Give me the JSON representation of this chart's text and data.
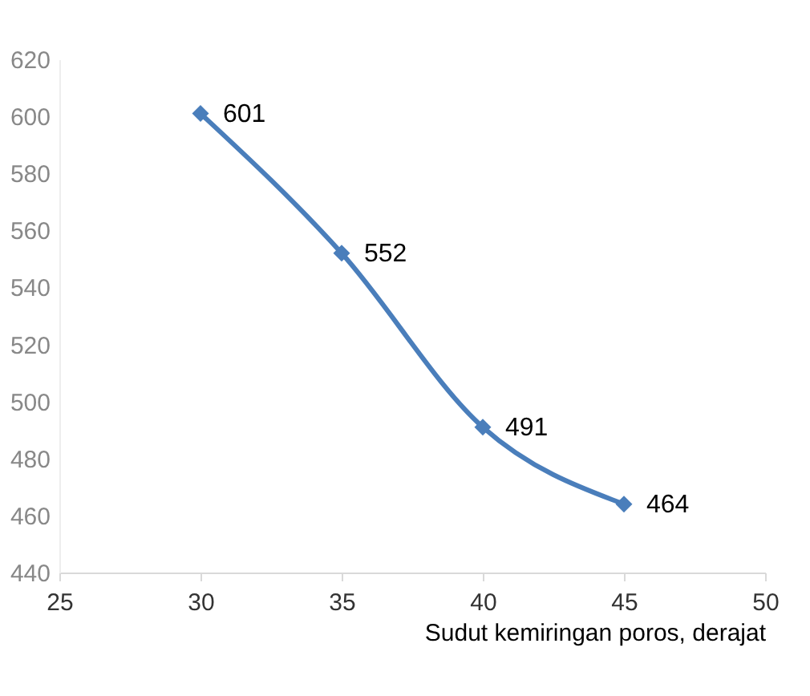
{
  "chart_data": {
    "type": "line",
    "xlabel": "Sudut kemiringan poros, derajat",
    "x": [
      30,
      35,
      40,
      45
    ],
    "series": [
      {
        "color": "#4a7ebb",
        "values": [
          601,
          552,
          491,
          464
        ]
      }
    ],
    "xlim": [
      25,
      50
    ],
    "xticks": [
      25,
      30,
      35,
      40,
      45,
      50
    ],
    "ylim": [
      440,
      620
    ],
    "yticks": [
      440,
      460,
      480,
      500,
      520,
      540,
      560,
      580,
      600,
      620
    ],
    "marker": "diamond",
    "line_style": "solid",
    "data_labels": true,
    "grid": false,
    "legend": false
  }
}
